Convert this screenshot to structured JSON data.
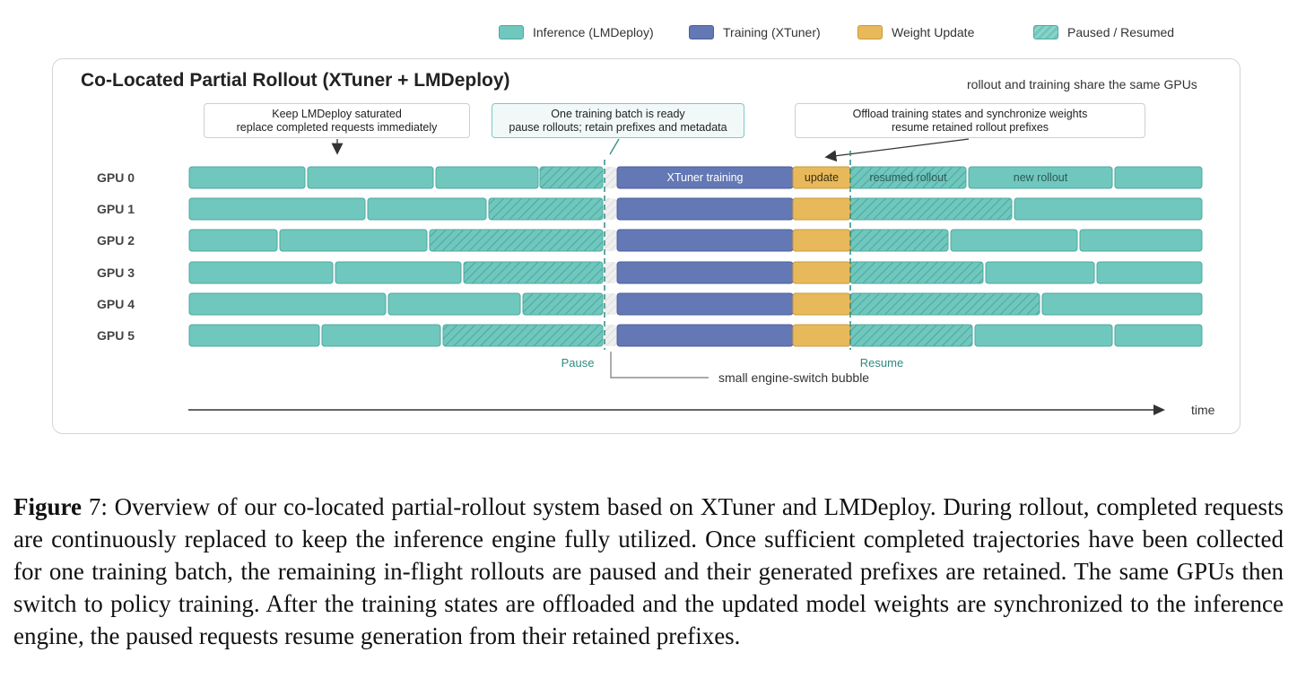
{
  "legend": [
    {
      "label": "Inference (LMDeploy)",
      "color": "#6fc7bd",
      "pattern": "solid"
    },
    {
      "label": "Training (XTuner)",
      "color": "#6478b5",
      "pattern": "solid"
    },
    {
      "label": "Weight Update",
      "color": "#e8b95a",
      "pattern": "solid"
    },
    {
      "label": "Paused / Resumed",
      "color": "#6fc7bd",
      "pattern": "hatched"
    }
  ],
  "diagram": {
    "title": "Co-Located Partial Rollout (XTuner + LMDeploy)",
    "note": "rollout and training share the same GPUs",
    "callouts": [
      {
        "lines": [
          "Keep LMDeploy saturated",
          "replace completed requests immediately"
        ]
      },
      {
        "lines": [
          "One training batch is ready",
          "pause rollouts; retain prefixes and metadata"
        ]
      },
      {
        "lines": [
          "Offload training states and synchronize weights",
          "resume retained rollout prefixes"
        ]
      }
    ],
    "gpus": [
      "GPU 0",
      "GPU 1",
      "GPU 2",
      "GPU 3",
      "GPU 4",
      "GPU 5"
    ],
    "segment_labels": {
      "training": "XTuner training",
      "update": "update",
      "resumed": "resumed rollout",
      "new": "new rollout"
    },
    "markers": {
      "pause": "Pause",
      "resume": "Resume",
      "bubble": "small engine-switch bubble"
    },
    "axis_label": "time",
    "colors": {
      "inference": "#6fc7bd",
      "training": "#6478b5",
      "update": "#e8b95a",
      "border_inference": "#4fa99f",
      "marker": "#2e8a82"
    }
  },
  "caption": {
    "label": "Figure",
    "number": "7:",
    "text": "Overview of our co-located partial-rollout system based on XTuner and LMDeploy. During rollout, completed requests are continuously replaced to keep the inference engine fully utilized. Once sufficient completed trajectories have been collected for one training batch, the remaining in-flight rollouts are paused and their generated prefixes are retained. The same GPUs then switch to policy training. After the training states are offloaded and the updated model weights are synchronized to the inference engine, the paused requests resume generation from their retained prefixes."
  }
}
